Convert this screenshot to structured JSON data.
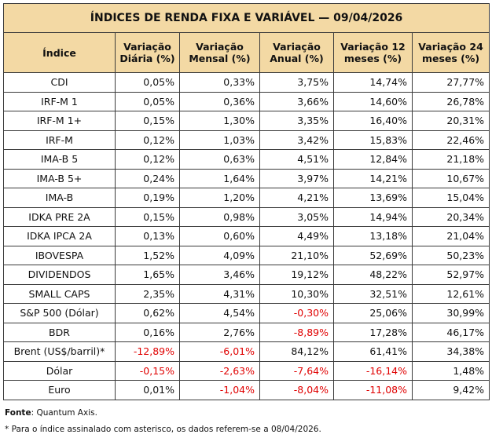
{
  "table": {
    "title": "ÍNDICES DE RENDA FIXA E VARIÁVEL — 09/04/2026",
    "header": [
      "Índice",
      "Variação Diária (%)",
      "Variação Mensal (%)",
      "Variação Anual (%)",
      "Variação 12 meses (%)",
      "Variação 24 meses (%)"
    ],
    "rows": [
      [
        "CDI",
        "0,05%",
        "0,33%",
        "3,75%",
        "14,74%",
        "27,77%"
      ],
      [
        "IRF-M 1",
        "0,05%",
        "0,36%",
        "3,66%",
        "14,60%",
        "26,78%"
      ],
      [
        "IRF-M 1+",
        "0,15%",
        "1,30%",
        "3,35%",
        "16,40%",
        "20,31%"
      ],
      [
        "IRF-M",
        "0,12%",
        "1,03%",
        "3,42%",
        "15,83%",
        "22,46%"
      ],
      [
        "IMA-B 5",
        "0,12%",
        "0,63%",
        "4,51%",
        "12,84%",
        "21,18%"
      ],
      [
        "IMA-B 5+",
        "0,24%",
        "1,64%",
        "3,97%",
        "14,21%",
        "10,67%"
      ],
      [
        "IMA-B",
        "0,19%",
        "1,20%",
        "4,21%",
        "13,69%",
        "15,04%"
      ],
      [
        "IDKA PRE 2A",
        "0,15%",
        "0,98%",
        "3,05%",
        "14,94%",
        "20,34%"
      ],
      [
        "IDKA IPCA 2A",
        "0,13%",
        "0,60%",
        "4,49%",
        "13,18%",
        "21,04%"
      ],
      [
        "IBOVESPA",
        "1,52%",
        "4,09%",
        "21,10%",
        "52,69%",
        "50,23%"
      ],
      [
        "DIVIDENDOS",
        "1,65%",
        "3,46%",
        "19,12%",
        "48,22%",
        "52,97%"
      ],
      [
        "SMALL CAPS",
        "2,35%",
        "4,31%",
        "10,30%",
        "32,51%",
        "12,61%"
      ],
      [
        "S&P 500 (Dólar)",
        "0,62%",
        "4,54%",
        "-0,30%",
        "25,06%",
        "30,99%"
      ],
      [
        "BDR",
        "0,16%",
        "2,76%",
        "-8,89%",
        "17,28%",
        "46,17%"
      ],
      [
        "Brent (US$/barril)*",
        "-12,89%",
        "-6,01%",
        "84,12%",
        "61,41%",
        "34,38%"
      ],
      [
        "Dólar",
        "-0,15%",
        "-2,63%",
        "-7,64%",
        "-16,14%",
        "1,48%"
      ],
      [
        "Euro",
        "0,01%",
        "-1,04%",
        "-8,04%",
        "-11,08%",
        "9,42%"
      ]
    ]
  },
  "footer": {
    "source_label": "Fonte",
    "source_text": ": Quantum Axis.",
    "note": "* Para o índice assinalado com asterisco, os dados referem-se a 08/04/2026."
  }
}
